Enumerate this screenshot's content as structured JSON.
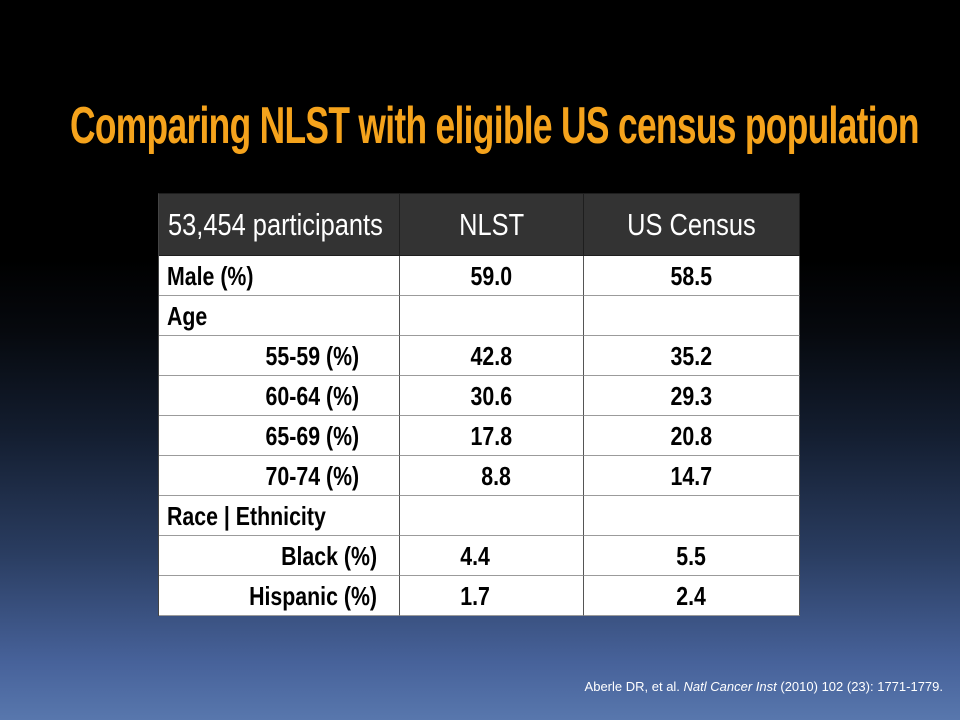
{
  "slide": {
    "title": "Comparing NLST with eligible US census population",
    "citation": {
      "authors": "Aberle DR, et al.",
      "journal": "Natl Cancer Inst",
      "details": "(2010) 102 (23): 1771-1779."
    }
  },
  "table": {
    "headers": {
      "group": "53,454 participants",
      "nlst": "NLST",
      "census": "US Census"
    },
    "rows": [
      {
        "label": "Male (%)",
        "nlst": "59.0",
        "census": "58.5"
      },
      {
        "label": "Age"
      },
      {
        "label": "55-59 (%)",
        "nlst": "42.8",
        "census": "35.2"
      },
      {
        "label": "60-64 (%)",
        "nlst": "30.6",
        "census": "29.3"
      },
      {
        "label": "65-69 (%)",
        "nlst": "17.8",
        "census": "20.8"
      },
      {
        "label": "70-74 (%)",
        "nlst": "8.8",
        "census": "14.7"
      },
      {
        "label": "Race | Ethnicity"
      },
      {
        "label": "Black (%)",
        "nlst": "4.4",
        "census": "5.5"
      },
      {
        "label": "Hispanic (%)",
        "nlst": "1.7",
        "census": "2.4"
      }
    ]
  },
  "theme": {
    "title_color": "#F5A31C",
    "header_bg": "#333333",
    "header_text": "#FFFFFF",
    "cell_bg": "#FFFFFF",
    "cell_text": "#000000",
    "citation_text": "#FFFFFF"
  }
}
